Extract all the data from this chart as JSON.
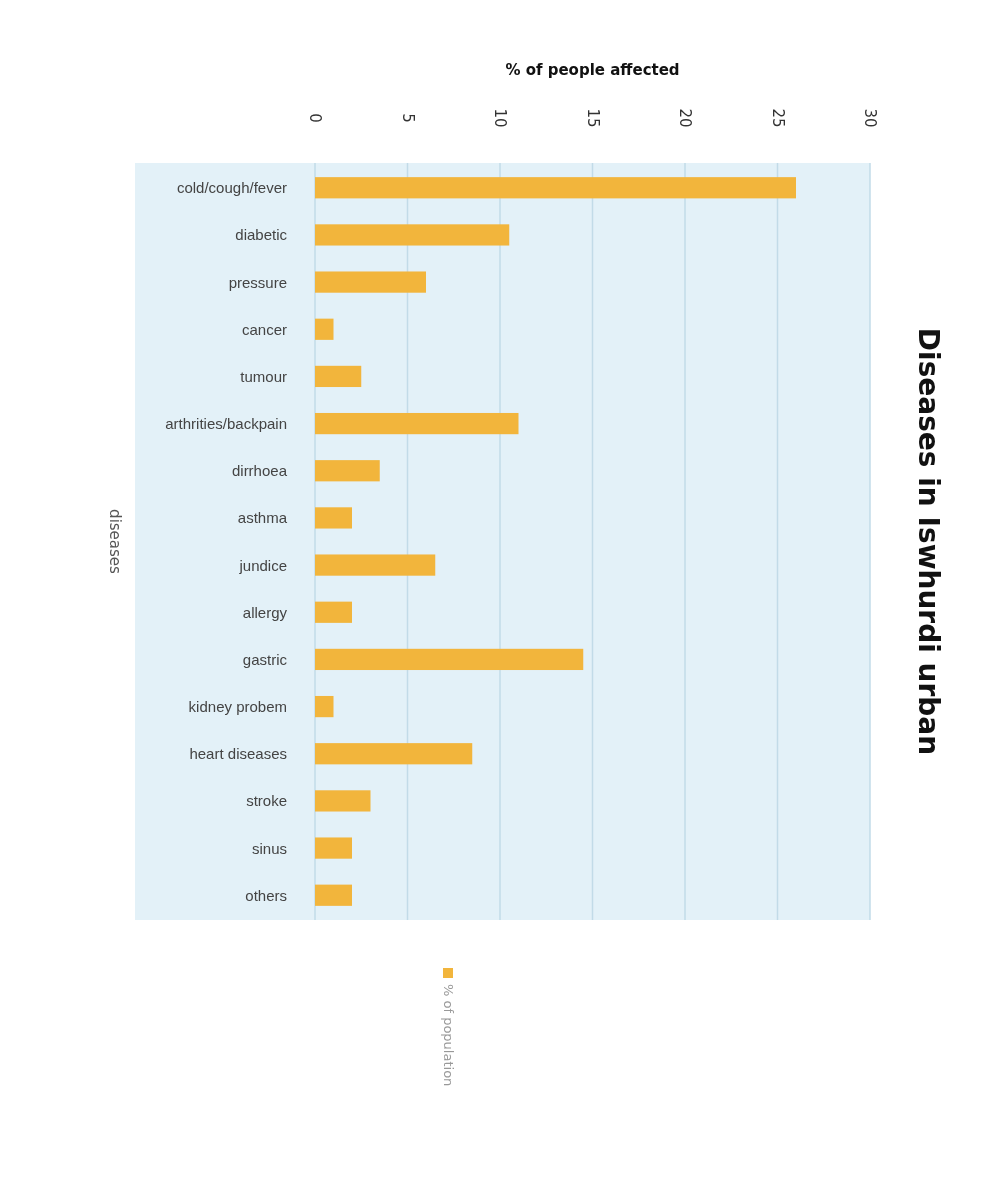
{
  "chart_data": {
    "type": "bar",
    "orientation": "horizontal",
    "title": "Diseases in Iswhurdi urban",
    "xlabel": "% of people affected",
    "ylabel": "diseases",
    "categories": [
      "cold/cough/fever",
      "diabetic",
      "pressure",
      "cancer",
      "tumour",
      "arthrities/backpain",
      "dirrhoea",
      "asthma",
      "jundice",
      "allergy",
      "gastric",
      "kidney probem",
      "heart diseases",
      "stroke",
      "sinus",
      "others"
    ],
    "series": [
      {
        "name": "% of population",
        "color": "#f2b53c",
        "values": [
          26,
          10.5,
          6,
          1,
          2.5,
          11,
          3.5,
          2,
          6.5,
          2,
          14.5,
          1,
          8.5,
          3,
          2,
          2
        ]
      }
    ],
    "xlim": [
      0,
      30
    ],
    "xticks": [
      0,
      5,
      10,
      15,
      20,
      25,
      30
    ],
    "grid": "x",
    "legend": "bottom"
  }
}
